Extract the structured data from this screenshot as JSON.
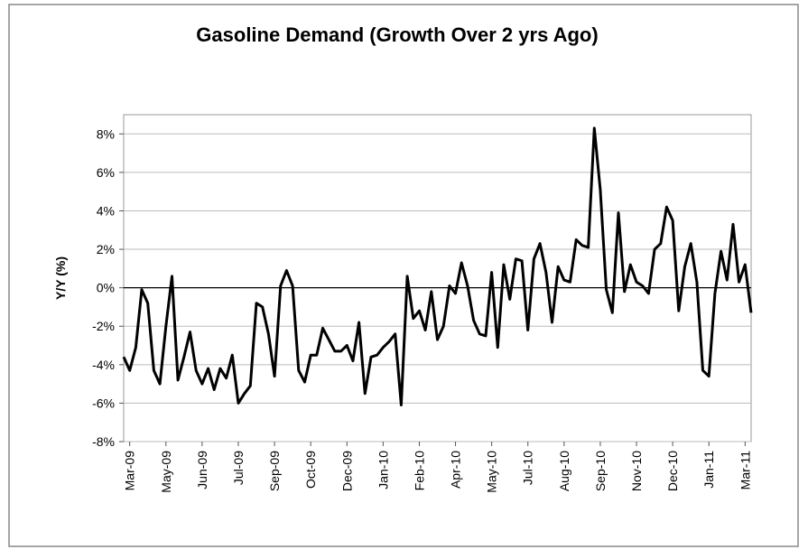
{
  "chart_data": {
    "type": "line",
    "title": "Gasoline Demand (Growth Over 2 yrs Ago)",
    "y_label": "Y/Y (%)",
    "categories": [
      null,
      "Mar-09",
      null,
      null,
      null,
      null,
      null,
      "May-09",
      null,
      null,
      null,
      null,
      null,
      "Jun-09",
      null,
      null,
      null,
      null,
      null,
      "Jul-09",
      null,
      null,
      null,
      null,
      null,
      "Sep-09",
      null,
      null,
      null,
      null,
      null,
      "Oct-09",
      null,
      null,
      null,
      null,
      null,
      "Dec-09",
      null,
      null,
      null,
      null,
      null,
      "Jan-10",
      null,
      null,
      null,
      null,
      null,
      "Feb-10",
      null,
      null,
      null,
      null,
      null,
      "Apr-10",
      null,
      null,
      null,
      null,
      null,
      "May-10",
      null,
      null,
      null,
      null,
      null,
      "Jul-10",
      null,
      null,
      null,
      null,
      null,
      "Aug-10",
      null,
      null,
      null,
      null,
      null,
      "Sep-10",
      null,
      null,
      null,
      null,
      null,
      "Nov-10",
      null,
      null,
      null,
      null,
      null,
      "Dec-10",
      null,
      null,
      null,
      null,
      null,
      "Jan-11",
      null,
      null,
      null,
      null,
      null,
      "Mar-11",
      null
    ],
    "series": [
      {
        "color": "#000000",
        "values": [
          -3.6,
          -4.3,
          -3.1,
          -0.1,
          -0.8,
          -4.3,
          -5.0,
          -2.0,
          0.6,
          -4.8,
          -3.6,
          -2.3,
          -4.3,
          -5.0,
          -4.2,
          -5.3,
          -4.2,
          -4.7,
          -3.5,
          -6.0,
          -5.5,
          -5.1,
          -0.8,
          -1.0,
          -2.4,
          -4.6,
          0.1,
          0.9,
          0.1,
          -4.3,
          -4.9,
          -3.5,
          -3.5,
          -2.1,
          -2.7,
          -3.3,
          -3.3,
          -3.0,
          -3.8,
          -1.8,
          -5.5,
          -3.6,
          -3.5,
          -3.1,
          -2.8,
          -2.4,
          -6.1,
          0.6,
          -1.6,
          -1.2,
          -2.2,
          -0.2,
          -2.7,
          -2.0,
          0.1,
          -0.3,
          1.3,
          0.1,
          -1.7,
          -2.4,
          -2.5,
          0.8,
          -3.1,
          1.2,
          -0.6,
          1.5,
          1.4,
          -2.2,
          1.5,
          2.3,
          0.8,
          -1.8,
          1.1,
          0.4,
          0.3,
          2.5,
          2.2,
          2.1,
          8.3,
          5.1,
          -0.1,
          -1.3,
          3.9,
          -0.2,
          1.2,
          0.3,
          0.1,
          -0.3,
          2.0,
          2.3,
          4.2,
          3.5,
          -1.2,
          1.1,
          2.3,
          0.3,
          -4.3,
          -4.6,
          -0.3,
          1.9,
          0.4,
          3.3,
          0.3,
          1.2,
          -1.3
        ]
      }
    ],
    "ylim": [
      -8,
      9
    ],
    "yticks": [
      {
        "value": -8,
        "label": "-8%"
      },
      {
        "value": -6,
        "label": "-6%"
      },
      {
        "value": -4,
        "label": "-4%"
      },
      {
        "value": -2,
        "label": "-2%"
      },
      {
        "value": 0,
        "label": "0%"
      },
      {
        "value": 2,
        "label": "2%"
      },
      {
        "value": 4,
        "label": "4%"
      },
      {
        "value": 6,
        "label": "6%"
      },
      {
        "value": 8,
        "label": "8%"
      }
    ],
    "grid": true
  }
}
